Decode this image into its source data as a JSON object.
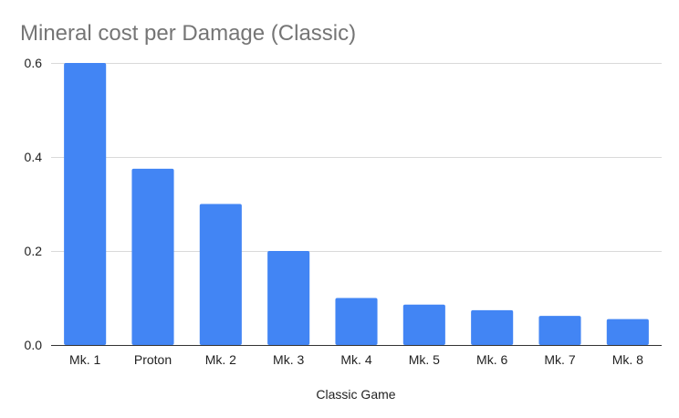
{
  "chart_data": {
    "type": "bar",
    "title": "Mineral cost per Damage (Classic)",
    "xlabel": "Classic Game",
    "ylabel": "",
    "categories": [
      "Mk. 1",
      "Proton",
      "Mk. 2",
      "Mk. 3",
      "Mk. 4",
      "Mk. 5",
      "Mk. 6",
      "Mk. 7",
      "Mk. 8"
    ],
    "series": [
      {
        "values": [
          0.6,
          0.375,
          0.3,
          0.2,
          0.1,
          0.086,
          0.074,
          0.062,
          0.055
        ]
      }
    ],
    "ylim": [
      0,
      0.6
    ],
    "yticks": [
      "0.0",
      "0.2",
      "0.4",
      "0.6"
    ],
    "ytick_values": [
      0,
      0.2,
      0.4,
      0.6
    ],
    "grid": true,
    "legend": "none",
    "colors": {
      "bar": "#4285f4",
      "grid": "#d9d9d9",
      "title": "#757575"
    }
  }
}
